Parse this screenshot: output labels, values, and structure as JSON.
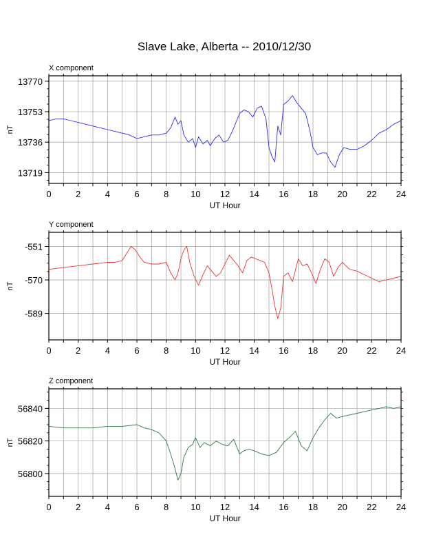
{
  "title": "Slave Lake, Alberta -- 2010/12/30",
  "chart_data": [
    {
      "type": "line",
      "panel_label": "X component",
      "xlabel": "UT Hour",
      "ylabel": "nT",
      "xlim": [
        0,
        24
      ],
      "ylim": [
        13713,
        13773
      ],
      "xticks": [
        0,
        2,
        4,
        6,
        8,
        10,
        12,
        14,
        16,
        18,
        20,
        22,
        24
      ],
      "yticks": [
        13719,
        13736,
        13753,
        13770
      ],
      "grid": true,
      "color": "#2b2bf0",
      "x": [
        0,
        0.5,
        1,
        1.5,
        2,
        2.5,
        3,
        3.5,
        4,
        4.5,
        5,
        5.5,
        6,
        6.5,
        7,
        7.5,
        8,
        8.3,
        8.6,
        8.8,
        9,
        9.2,
        9.5,
        9.8,
        10,
        10.2,
        10.5,
        10.8,
        11,
        11.3,
        11.6,
        11.9,
        12.2,
        12.5,
        12.8,
        13,
        13.3,
        13.6,
        13.9,
        14.2,
        14.5,
        14.8,
        15,
        15.2,
        15.4,
        15.6,
        15.8,
        16,
        16.3,
        16.6,
        16.9,
        17.2,
        17.5,
        17.8,
        18,
        18.3,
        18.6,
        18.9,
        19.2,
        19.5,
        19.8,
        20.1,
        20.5,
        21,
        21.5,
        22,
        22.5,
        23,
        23.5,
        24
      ],
      "y": [
        13748,
        13749,
        13749,
        13748,
        13747,
        13746,
        13745,
        13744,
        13743,
        13742,
        13741,
        13740,
        13738,
        13739,
        13740,
        13740,
        13741,
        13744,
        13750,
        13746,
        13748,
        13740,
        13736,
        13738,
        13733,
        13739,
        13735,
        13737,
        13734,
        13738,
        13740,
        13736,
        13737,
        13742,
        13748,
        13752,
        13754,
        13753,
        13750,
        13755,
        13756,
        13749,
        13733,
        13728,
        13725,
        13745,
        13740,
        13757,
        13759,
        13762,
        13758,
        13755,
        13752,
        13742,
        13733,
        13729,
        13730,
        13730,
        13725,
        13722,
        13729,
        13733,
        13732,
        13732,
        13734,
        13737,
        13741,
        13743,
        13746,
        13748
      ]
    },
    {
      "type": "line",
      "panel_label": "Y component",
      "xlabel": "UT Hour",
      "ylabel": "nT",
      "xlim": [
        0,
        24
      ],
      "ylim": [
        -604,
        -543
      ],
      "xticks": [
        0,
        2,
        4,
        6,
        8,
        10,
        12,
        14,
        16,
        18,
        20,
        22,
        24
      ],
      "yticks": [
        -551,
        -570,
        -589
      ],
      "grid": true,
      "color": "#f03030",
      "x": [
        0,
        1,
        2,
        3,
        4,
        4.5,
        5,
        5.3,
        5.6,
        5.9,
        6.2,
        6.5,
        7,
        7.5,
        8,
        8.3,
        8.6,
        8.8,
        9,
        9.2,
        9.4,
        9.6,
        9.9,
        10.2,
        10.5,
        10.8,
        11.1,
        11.4,
        11.7,
        12,
        12.3,
        12.6,
        12.9,
        13.2,
        13.5,
        13.8,
        14.1,
        14.4,
        14.7,
        15,
        15.2,
        15.4,
        15.6,
        15.8,
        16,
        16.3,
        16.6,
        17,
        17.3,
        17.6,
        17.9,
        18.2,
        18.5,
        18.8,
        19.1,
        19.4,
        19.7,
        20,
        20.5,
        21,
        21.5,
        22,
        22.5,
        23,
        23.5,
        24
      ],
      "y": [
        -564,
        -563,
        -562,
        -561,
        -560,
        -560,
        -559,
        -555,
        -551,
        -553,
        -557,
        -560,
        -561,
        -561,
        -560,
        -566,
        -570,
        -566,
        -558,
        -553,
        -551,
        -560,
        -568,
        -573,
        -567,
        -562,
        -565,
        -568,
        -566,
        -561,
        -556,
        -559,
        -562,
        -566,
        -559,
        -557,
        -558,
        -559,
        -560,
        -566,
        -575,
        -585,
        -592,
        -586,
        -568,
        -566,
        -571,
        -558,
        -562,
        -561,
        -566,
        -572,
        -564,
        -558,
        -560,
        -568,
        -563,
        -560,
        -564,
        -565,
        -567,
        -569,
        -571,
        -570,
        -569,
        -568
      ]
    },
    {
      "type": "line",
      "panel_label": "Z component",
      "xlabel": "UT Hour",
      "ylabel": "nT",
      "xlim": [
        0,
        24
      ],
      "ylim": [
        56786,
        56852
      ],
      "xticks": [
        0,
        2,
        4,
        6,
        8,
        10,
        12,
        14,
        16,
        18,
        20,
        22,
        24
      ],
      "yticks": [
        56800,
        56820,
        56840
      ],
      "grid": true,
      "color": "#2a7a40",
      "x": [
        0,
        1,
        2,
        3,
        4,
        5,
        6,
        6.5,
        7,
        7.5,
        8,
        8.3,
        8.6,
        8.8,
        9,
        9.2,
        9.5,
        9.8,
        10,
        10.3,
        10.6,
        11,
        11.4,
        11.8,
        12.2,
        12.6,
        13,
        13.3,
        13.6,
        14,
        14.5,
        15,
        15.5,
        16,
        16.5,
        16.8,
        17.2,
        17.6,
        18,
        18.4,
        18.8,
        19.2,
        19.6,
        20,
        20.5,
        21,
        21.5,
        22,
        22.5,
        23,
        23.5,
        24
      ],
      "y": [
        56829,
        56828,
        56828,
        56828,
        56829,
        56829,
        56830,
        56828,
        56827,
        56825,
        56820,
        56812,
        56803,
        56796,
        56800,
        56810,
        56816,
        56818,
        56822,
        56816,
        56819,
        56817,
        56820,
        56818,
        56817,
        56821,
        56812,
        56814,
        56815,
        56814,
        56812,
        56811,
        56813,
        56819,
        56823,
        56826,
        56817,
        56814,
        56822,
        56828,
        56833,
        56837,
        56834,
        56835,
        56836,
        56837,
        56838,
        56839,
        56840,
        56841,
        56840,
        56841
      ]
    }
  ]
}
